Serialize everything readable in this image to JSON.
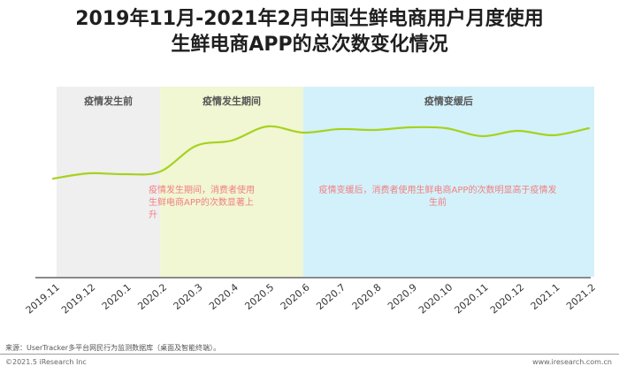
{
  "header": {
    "title_line1": "2019年11月-2021年2月中国生鲜电商用户月度使用",
    "title_line2": "生鲜电商APP的总次数变化情况"
  },
  "chart_data": {
    "type": "line",
    "x": [
      "2019.11",
      "2019.12",
      "2020.1",
      "2020.2",
      "2020.3",
      "2020.4",
      "2020.5",
      "2020.6",
      "2020.7",
      "2020.8",
      "2020.9",
      "2020.10",
      "2020.11",
      "2020.12",
      "2021.1",
      "2021.2"
    ],
    "series": [
      {
        "values": [
          20,
          26,
          25,
          28,
          57,
          63,
          79,
          72,
          76,
          75,
          78,
          77,
          68,
          74,
          69,
          77
        ]
      }
    ],
    "y_scale": [
      0,
      100
    ],
    "y_axis_visible": false,
    "grid": false,
    "phases": [
      {
        "label": "疫情发生前",
        "from": "2019.11",
        "to": "2020.2",
        "color": "#efefef"
      },
      {
        "label": "疫情发生期间",
        "from": "2020.2",
        "to": "2020.6",
        "color": "#f1f6d3"
      },
      {
        "label": "疫情变缓后",
        "from": "2020.6",
        "to": "2021.2",
        "color": "#d3f1fb"
      }
    ],
    "annotations": [
      {
        "lines": [
          "疫情发生期间，消费者使用",
          "生鲜电商APP的次数显著上",
          "升"
        ],
        "color": "#f08080"
      },
      {
        "lines": [
          "疫情变缓后，消费者使用生鲜电商APP的次数明显高于疫情发",
          "生前"
        ],
        "color": "#f08080"
      }
    ],
    "line_color": "#a6d21e",
    "axis_color": "#444444"
  },
  "footer": {
    "source": "来源：UserTracker多平台网民行为监测数据库（桌面及智能终端）。",
    "copyright": "©2021.5 iResearch Inc",
    "site": "www.iresearch.com.cn"
  }
}
